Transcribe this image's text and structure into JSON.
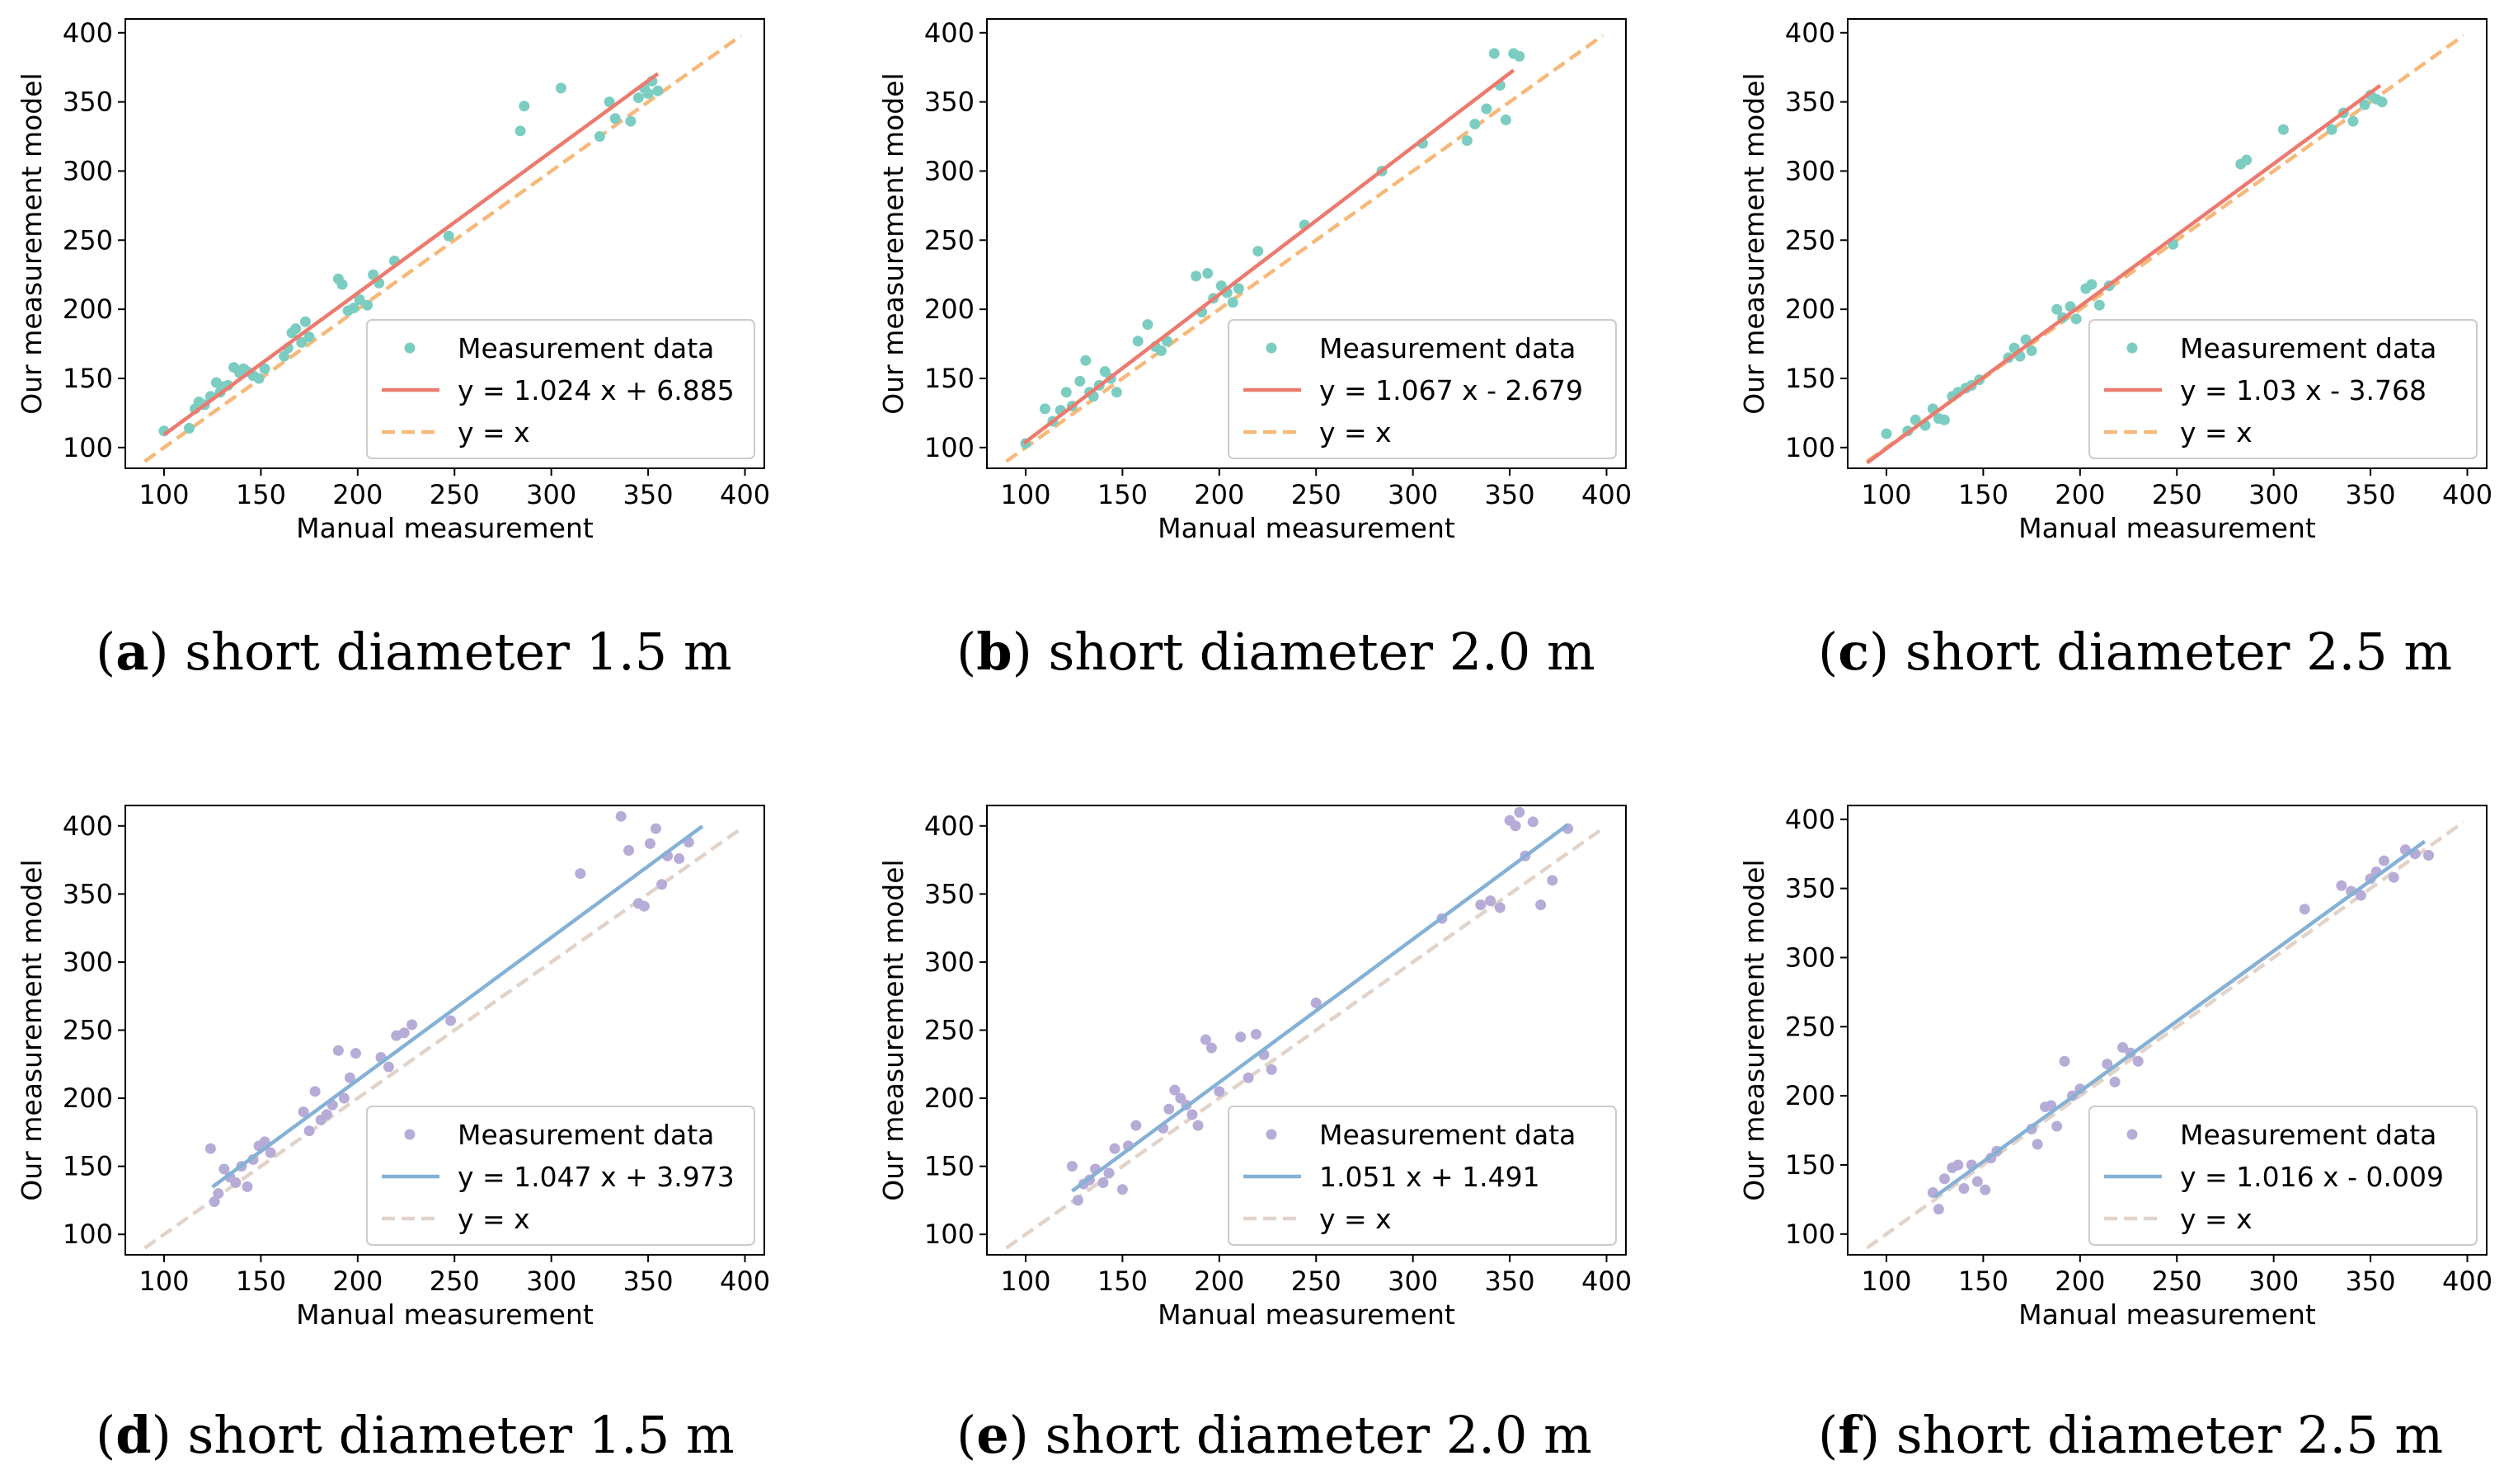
{
  "colors": {
    "top_points": "#7ccdc1",
    "top_fit": "#ec7a6e",
    "top_ref": "#f6b97a",
    "bottom_points": "#b6acd7",
    "bottom_fit": "#85b1d6",
    "bottom_ref": "#e2d3c9"
  },
  "chart_data": [
    {
      "type": "scatter",
      "panel_letter": "a",
      "caption": "short diameter 1.5 m",
      "xlabel": "Manual measurement",
      "ylabel": "Our measurement model",
      "xlim": [
        80,
        410
      ],
      "ylim": [
        85,
        410
      ],
      "xticks": [
        100,
        150,
        200,
        250,
        300,
        350,
        400
      ],
      "yticks": [
        100,
        150,
        200,
        250,
        300,
        350,
        400
      ],
      "legend": [
        "Measurement data",
        "y = 1.024 x + 6.885",
        "y = x"
      ],
      "legend_position": "lower right",
      "fit": {
        "slope": 1.024,
        "intercept": 6.885,
        "x_range": [
          100,
          355
        ]
      },
      "ref": {
        "x_range": [
          90,
          398
        ]
      },
      "x": [
        100,
        113,
        116,
        118,
        121,
        124,
        127,
        129,
        131,
        133,
        136,
        139,
        141,
        143,
        146,
        149,
        152,
        162,
        164,
        166,
        168,
        171,
        173,
        175,
        190,
        192,
        195,
        198,
        201,
        205,
        208,
        211,
        219,
        247,
        284,
        286,
        305,
        325,
        330,
        333,
        341,
        345,
        348,
        350,
        352,
        355
      ],
      "y": [
        112,
        114,
        128,
        133,
        131,
        137,
        147,
        140,
        144,
        145,
        158,
        154,
        157,
        155,
        152,
        150,
        157,
        166,
        172,
        183,
        186,
        176,
        191,
        180,
        222,
        218,
        199,
        201,
        207,
        203,
        225,
        219,
        235,
        253,
        329,
        347,
        360,
        325,
        350,
        338,
        336,
        353,
        360,
        356,
        365,
        358
      ]
    },
    {
      "type": "scatter",
      "panel_letter": "b",
      "caption": "short diameter 2.0 m",
      "xlabel": "Manual measurement",
      "ylabel": "Our measurement model",
      "xlim": [
        80,
        410
      ],
      "ylim": [
        85,
        410
      ],
      "xticks": [
        100,
        150,
        200,
        250,
        300,
        350,
        400
      ],
      "yticks": [
        100,
        150,
        200,
        250,
        300,
        350,
        400
      ],
      "legend": [
        "Measurement data",
        "y = 1.067 x - 2.679",
        "y = x"
      ],
      "legend_position": "lower right",
      "fit": {
        "slope": 1.067,
        "intercept": -2.679,
        "x_range": [
          99,
          352
        ]
      },
      "ref": {
        "x_range": [
          90,
          398
        ]
      },
      "x": [
        100,
        110,
        114,
        118,
        121,
        124,
        128,
        131,
        133,
        135,
        138,
        141,
        144,
        147,
        158,
        163,
        167,
        170,
        173,
        188,
        191,
        194,
        197,
        201,
        204,
        207,
        210,
        220,
        244,
        284,
        305,
        328,
        332,
        338,
        342,
        345,
        348,
        352,
        355
      ],
      "y": [
        103,
        128,
        119,
        127,
        140,
        130,
        148,
        163,
        140,
        137,
        145,
        155,
        150,
        140,
        177,
        189,
        173,
        170,
        177,
        224,
        198,
        226,
        208,
        217,
        212,
        205,
        215,
        242,
        261,
        300,
        320,
        322,
        334,
        345,
        385,
        362,
        337,
        385,
        383
      ]
    },
    {
      "type": "scatter",
      "panel_letter": "c",
      "caption": "short diameter 2.5 m",
      "xlabel": "Manual measurement",
      "ylabel": "Our measurement model",
      "xlim": [
        80,
        410
      ],
      "ylim": [
        85,
        410
      ],
      "xticks": [
        100,
        150,
        200,
        250,
        300,
        350,
        400
      ],
      "yticks": [
        100,
        150,
        200,
        250,
        300,
        350,
        400
      ],
      "legend": [
        "Measurement data",
        "y = 1.03 x - 3.768",
        "y = x"
      ],
      "legend_position": "lower right",
      "fit": {
        "slope": 1.03,
        "intercept": -3.768,
        "x_range": [
          90,
          355
        ]
      },
      "ref": {
        "x_range": [
          90,
          398
        ]
      },
      "x": [
        100,
        111,
        115,
        120,
        124,
        127,
        130,
        134,
        137,
        141,
        144,
        148,
        163,
        166,
        169,
        172,
        175,
        188,
        191,
        195,
        198,
        203,
        206,
        210,
        215,
        248,
        283,
        286,
        305,
        330,
        336,
        341,
        347,
        350,
        353,
        356
      ],
      "y": [
        110,
        112,
        120,
        116,
        128,
        121,
        120,
        137,
        140,
        143,
        145,
        149,
        165,
        172,
        166,
        178,
        170,
        200,
        194,
        202,
        193,
        215,
        218,
        203,
        217,
        247,
        305,
        308,
        330,
        330,
        342,
        336,
        348,
        355,
        352,
        350
      ]
    },
    {
      "type": "scatter",
      "panel_letter": "d",
      "caption": "short diameter 1.5 m",
      "xlabel": "Manual measurement",
      "ylabel": "Our measurement model",
      "xlim": [
        80,
        410
      ],
      "ylim": [
        85,
        415
      ],
      "xticks": [
        100,
        150,
        200,
        250,
        300,
        350,
        400
      ],
      "yticks": [
        100,
        150,
        200,
        250,
        300,
        350,
        400
      ],
      "legend": [
        "Measurement data",
        "y = 1.047 x + 3.973",
        "y = x"
      ],
      "legend_position": "lower right",
      "fit": {
        "slope": 1.047,
        "intercept": 3.973,
        "x_range": [
          125,
          378
        ]
      },
      "ref": {
        "x_range": [
          90,
          398
        ]
      },
      "x": [
        124,
        126,
        128,
        131,
        134,
        137,
        140,
        143,
        146,
        149,
        152,
        155,
        172,
        175,
        178,
        181,
        184,
        187,
        190,
        193,
        196,
        199,
        212,
        216,
        220,
        224,
        228,
        248,
        315,
        336,
        340,
        345,
        348,
        351,
        354,
        357,
        360,
        366,
        371
      ],
      "y": [
        163,
        124,
        130,
        148,
        142,
        138,
        150,
        135,
        155,
        165,
        168,
        160,
        190,
        176,
        205,
        184,
        188,
        195,
        235,
        200,
        215,
        233,
        230,
        223,
        246,
        248,
        254,
        257,
        365,
        407,
        382,
        343,
        341,
        387,
        398,
        357,
        378,
        376,
        388
      ]
    },
    {
      "type": "scatter",
      "panel_letter": "e",
      "caption": "short diameter 2.0 m",
      "xlabel": "Manual measurement",
      "ylabel": "Our measurement model",
      "xlim": [
        80,
        410
      ],
      "ylim": [
        85,
        415
      ],
      "xticks": [
        100,
        150,
        200,
        250,
        300,
        350,
        400
      ],
      "yticks": [
        100,
        150,
        200,
        250,
        300,
        350,
        400
      ],
      "legend": [
        "Measurement data",
        "1.051 x + 1.491",
        "y = x"
      ],
      "legend_position": "lower right",
      "fit": {
        "slope": 1.051,
        "intercept": 1.491,
        "x_range": [
          124,
          380
        ]
      },
      "ref": {
        "x_range": [
          90,
          398
        ]
      },
      "x": [
        124,
        127,
        130,
        133,
        136,
        140,
        143,
        146,
        150,
        153,
        157,
        171,
        174,
        177,
        180,
        183,
        186,
        189,
        193,
        196,
        200,
        211,
        215,
        219,
        223,
        227,
        250,
        315,
        335,
        340,
        345,
        350,
        353,
        355,
        358,
        362,
        366,
        372,
        380
      ],
      "y": [
        150,
        125,
        137,
        140,
        148,
        138,
        145,
        163,
        133,
        165,
        180,
        178,
        192,
        206,
        200,
        195,
        188,
        180,
        243,
        237,
        205,
        245,
        215,
        247,
        232,
        221,
        270,
        332,
        342,
        345,
        340,
        404,
        400,
        410,
        378,
        403,
        342,
        360,
        398
      ]
    },
    {
      "type": "scatter",
      "panel_letter": "f",
      "caption": "short diameter 2.5 m",
      "xlabel": "Manual measurement",
      "ylabel": "Our measurement model",
      "xlim": [
        80,
        410
      ],
      "ylim": [
        85,
        410
      ],
      "xticks": [
        100,
        150,
        200,
        250,
        300,
        350,
        400
      ],
      "yticks": [
        100,
        150,
        200,
        250,
        300,
        350,
        400
      ],
      "legend": [
        "Measurement data",
        "y = 1.016 x - 0.009",
        "y = x"
      ],
      "legend_position": "lower right",
      "fit": {
        "slope": 1.016,
        "intercept": -0.009,
        "x_range": [
          125,
          378
        ]
      },
      "ref": {
        "x_range": [
          90,
          398
        ]
      },
      "x": [
        124,
        127,
        130,
        134,
        137,
        140,
        144,
        147,
        151,
        154,
        157,
        175,
        178,
        182,
        185,
        188,
        192,
        196,
        200,
        214,
        218,
        222,
        226,
        230,
        316,
        335,
        340,
        345,
        350,
        353,
        357,
        362,
        368,
        373,
        380
      ],
      "y": [
        130,
        118,
        140,
        148,
        150,
        133,
        150,
        138,
        132,
        155,
        160,
        176,
        165,
        192,
        193,
        178,
        225,
        200,
        205,
        223,
        210,
        235,
        231,
        225,
        335,
        352,
        348,
        345,
        357,
        362,
        370,
        358,
        378,
        375,
        374
      ]
    }
  ]
}
